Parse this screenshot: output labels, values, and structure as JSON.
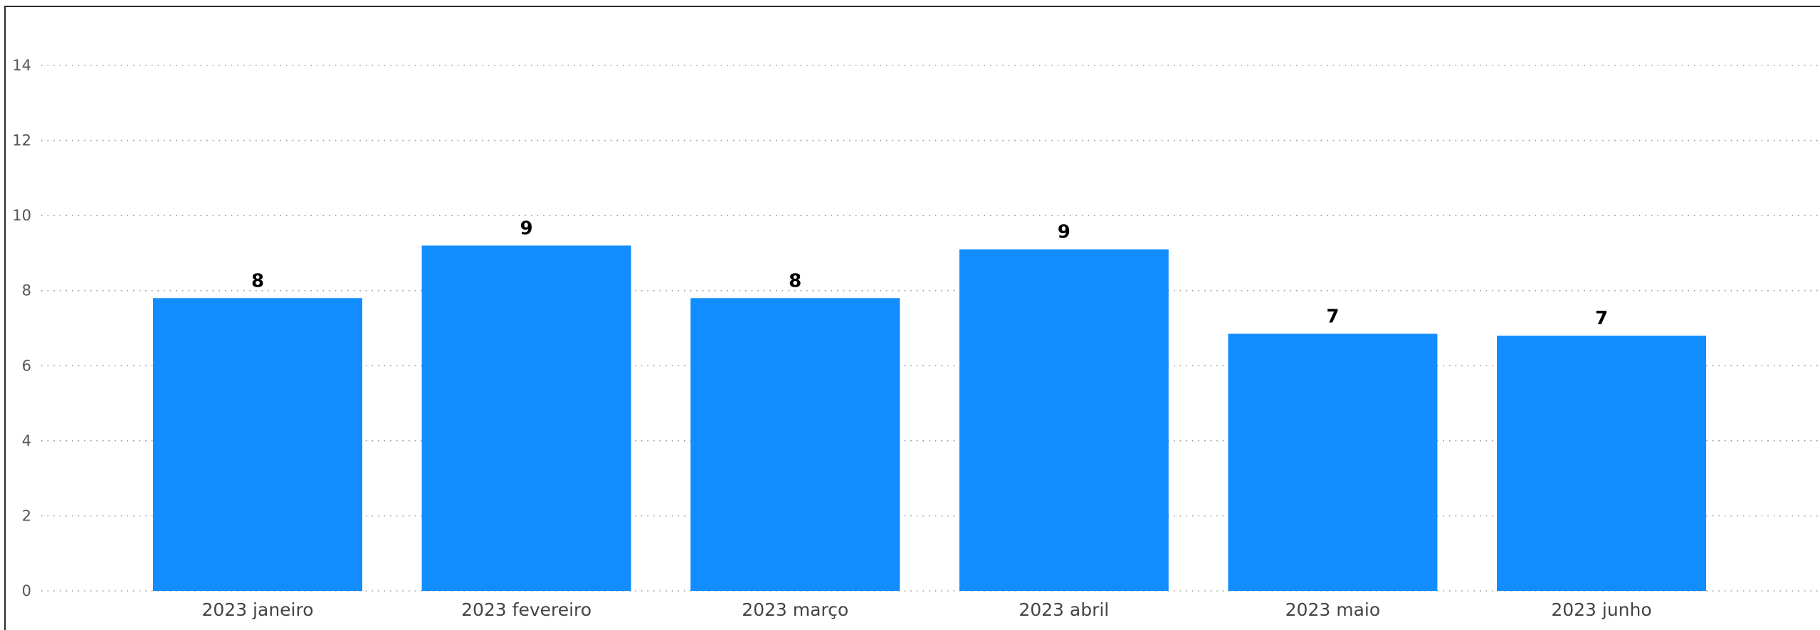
{
  "chart_data": {
    "type": "bar",
    "categories": [
      "2023 janeiro",
      "2023 fevereiro",
      "2023 março",
      "2023 abril",
      "2023 maio",
      "2023 junho"
    ],
    "values": [
      7.8,
      9.2,
      7.8,
      9.1,
      6.85,
      6.8
    ],
    "data_labels": [
      "8",
      "9",
      "8",
      "9",
      "7",
      "7"
    ],
    "title": "",
    "xlabel": "",
    "ylabel": "",
    "ylim": [
      0,
      14
    ],
    "yticks": [
      "0",
      "2",
      "4",
      "6",
      "8",
      "10",
      "12",
      "14"
    ],
    "grid": true,
    "legend": "none",
    "colors": {
      "bar": "#118dff",
      "grid": "#9a9a9a",
      "axis_text": "#555555",
      "data_label": "#000000"
    }
  }
}
